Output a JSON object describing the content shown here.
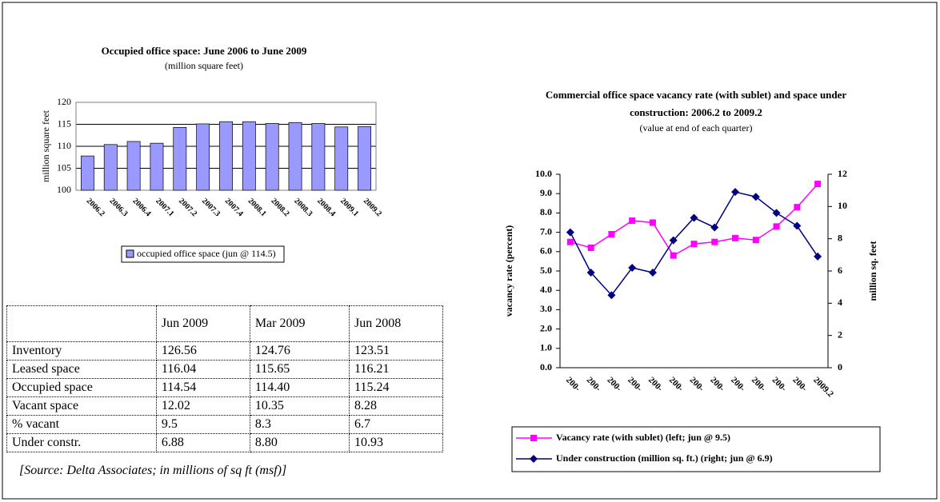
{
  "chart_data": [
    {
      "type": "bar",
      "title": "Occupied office space: June 2006 to June 2009",
      "subtitle": "(million square feet)",
      "y_label": "million square feet",
      "categories": [
        "2006.2",
        "2006.3",
        "2006.4",
        "2007.1",
        "2007.2",
        "2007.3",
        "2007.4",
        "2008.1",
        "2008.2",
        "2008.3",
        "2008.4",
        "2009.1",
        "2009.2"
      ],
      "series": [
        {
          "name": "occupied office space (jun @ 114.5)",
          "color": "#9999ff",
          "values": [
            107.8,
            110.4,
            111.1,
            110.7,
            114.3,
            115.1,
            115.6,
            115.6,
            115.2,
            115.4,
            115.2,
            114.4,
            114.5
          ]
        }
      ],
      "ylim": [
        100,
        120
      ],
      "yticks": [
        100,
        105,
        110,
        115,
        120
      ],
      "grid": true
    },
    {
      "type": "line",
      "title": "Commercial office space vacancy rate (with sublet) and space under construction: 2006.2 to 2009.2",
      "subtitle": "(value at end of each quarter)",
      "y_label": "vacancy rate (percent)",
      "y2_label": "million sq. feet",
      "categories": [
        "200-",
        "200-",
        "200-",
        "200-",
        "200-",
        "200-",
        "200-",
        "200-",
        "200-",
        "200-",
        "200-",
        "200-",
        "2009.2"
      ],
      "series": [
        {
          "name": "Vacancy rate (with sublet) (left; jun @ 9.5)",
          "color": "#ff00ff",
          "marker": "square",
          "values": [
            6.5,
            6.2,
            6.9,
            7.6,
            7.5,
            5.8,
            6.4,
            6.5,
            6.7,
            6.6,
            7.3,
            8.3,
            9.5
          ]
        },
        {
          "name": "Under construction (million sq. ft.) (right; jun @ 6.9)",
          "color": "#000080",
          "marker": "diamond",
          "axis": "y2",
          "values": [
            8.4,
            5.9,
            4.5,
            6.2,
            5.9,
            7.9,
            9.3,
            8.7,
            10.9,
            10.6,
            9.6,
            8.8,
            6.9
          ]
        }
      ],
      "ylim": [
        0,
        10
      ],
      "yticks": [
        {
          "value": 0,
          "label": "0.0"
        },
        {
          "value": 1,
          "label": "1.0"
        },
        {
          "value": 2,
          "label": "2.0"
        },
        {
          "value": 3,
          "label": "3.0"
        },
        {
          "value": 4,
          "label": "4.0"
        },
        {
          "value": 5,
          "label": "5.0"
        },
        {
          "value": 6,
          "label": "6.0"
        },
        {
          "value": 7,
          "label": "7.0"
        },
        {
          "value": 8,
          "label": "8.0"
        },
        {
          "value": 9,
          "label": "9.0"
        },
        {
          "value": 10,
          "label": "10.0"
        }
      ],
      "y2lim": [
        0,
        12
      ],
      "y2ticks": [
        0,
        2,
        4,
        6,
        8,
        10,
        12
      ],
      "grid": false
    }
  ],
  "table": {
    "header": [
      "Jun 2009",
      "Mar  2009",
      "Jun 2008"
    ],
    "rows": [
      [
        "Inventory",
        "126.56",
        "124.76",
        "123.51"
      ],
      [
        "Leased space",
        "116.04",
        "115.65",
        "116.21"
      ],
      [
        "Occupied space",
        "114.54",
        "114.40",
        "115.24"
      ],
      [
        "Vacant space",
        "12.02",
        "10.35",
        "8.28"
      ],
      [
        "% vacant",
        "9.5",
        "8.3",
        "6.7"
      ],
      [
        "Under constr.",
        "6.88",
        "8.80",
        "10.93"
      ]
    ]
  },
  "source": "[Source: Delta Associates; in millions of sq ft (msf)]"
}
